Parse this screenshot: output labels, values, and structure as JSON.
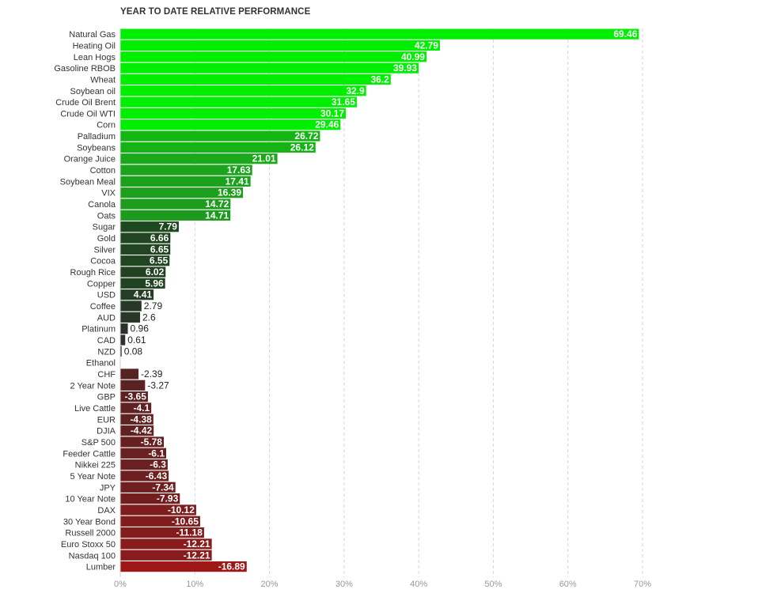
{
  "chart_data": {
    "type": "bar",
    "orientation": "horizontal",
    "title": "YEAR TO DATE RELATIVE PERFORMANCE",
    "xlim": [
      0,
      70
    ],
    "x_ticks": [
      "0%",
      "10%",
      "20%",
      "30%",
      "40%",
      "50%",
      "60%",
      "70%"
    ],
    "grid": true,
    "categories": [
      "Natural Gas",
      "Heating Oil",
      "Lean Hogs",
      "Gasoline RBOB",
      "Wheat",
      "Soybean oil",
      "Crude Oil Brent",
      "Crude Oil WTI",
      "Corn",
      "Palladium",
      "Soybeans",
      "Orange Juice",
      "Cotton",
      "Soybean Meal",
      "VIX",
      "Canola",
      "Oats",
      "Sugar",
      "Gold",
      "Silver",
      "Cocoa",
      "Rough Rice",
      "Copper",
      "USD",
      "Coffee",
      "AUD",
      "Platinum",
      "CAD",
      "NZD",
      "Ethanol",
      "CHF",
      "2 Year Note",
      "GBP",
      "Live Cattle",
      "EUR",
      "DJIA",
      "S&P 500",
      "Feeder Cattle",
      "Nikkei 225",
      "5 Year Note",
      "JPY",
      "10 Year Note",
      "DAX",
      "30 Year Bond",
      "Russell 2000",
      "Euro Stoxx 50",
      "Nasdaq 100",
      "Lumber"
    ],
    "values": [
      69.46,
      42.79,
      40.99,
      39.93,
      36.2,
      32.9,
      31.65,
      30.17,
      29.46,
      26.72,
      26.12,
      21.01,
      17.63,
      17.41,
      16.39,
      14.72,
      14.71,
      7.79,
      6.66,
      6.65,
      6.55,
      6.02,
      5.96,
      4.41,
      2.79,
      2.6,
      0.96,
      0.61,
      0.08,
      null,
      -2.39,
      -3.27,
      -3.65,
      -4.1,
      -4.38,
      -4.42,
      -5.78,
      -6.1,
      -6.3,
      -6.43,
      -7.34,
      -7.93,
      -10.12,
      -10.65,
      -11.18,
      -12.21,
      -12.21,
      -16.89
    ],
    "value_labels": [
      "69.46",
      "42.79",
      "40.99",
      "39.93",
      "36.2",
      "32.9",
      "31.65",
      "30.17",
      "29.46",
      "26.72",
      "26.12",
      "21.01",
      "17.63",
      "17.41",
      "16.39",
      "14.72",
      "14.71",
      "7.79",
      "6.66",
      "6.65",
      "6.55",
      "6.02",
      "5.96",
      "4.41",
      "2.79",
      "2.6",
      "0.96",
      "0.61",
      "0.08",
      "",
      "-2.39",
      "-3.27",
      "-3.65",
      "-4.1",
      "-4.38",
      "-4.42",
      "-5.78",
      "-6.1",
      "-6.3",
      "-6.43",
      "-7.34",
      "-7.93",
      "-10.12",
      "-10.65",
      "-11.18",
      "-12.21",
      "-12.21",
      "-16.89"
    ],
    "note": "bar length is drawn from the absolute value; color grades from bright green (highest) through dark tones to red (lowest)",
    "colors": {
      "bright_green": "#00ee00",
      "mid_green": "#1f9a1f",
      "dark_green": "#1e4a1e",
      "near_zero": "#2e2e2e",
      "dark_red": "#4a2424",
      "red": "#a01818"
    }
  }
}
